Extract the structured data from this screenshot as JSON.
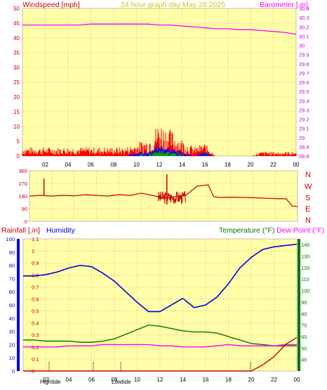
{
  "colors": {
    "plot_bg": "#ffffa8",
    "grid": "#f5a0a0",
    "wind_gust": "#ff0000",
    "wind_avg": "#0000ff",
    "wind_low": "#00a000",
    "barometer": "#ff00ff",
    "direction": "#cc0000",
    "rain": "#cc0000",
    "humidity": "#0000dd",
    "temperature": "#007700",
    "dew_point": "#ff00ff",
    "title": "#cccc00"
  },
  "header": {
    "wind_label": "Windspeed [mph]",
    "title": "24 hour graph day   May 28 2025",
    "baro_label": "Barometer [.in]"
  },
  "bottom_header": {
    "rain_label": "Rainfall [.in]",
    "humidity_label": "Humidity",
    "temp_label": "Temperature (°F)",
    "dew_label": "Dew Point (°F)"
  },
  "x_ticks": [
    "02",
    "04",
    "06",
    "08",
    "10",
    "12",
    "14",
    "16",
    "18",
    "20",
    "22",
    "00"
  ],
  "compass": [
    "N",
    "W",
    "S",
    "E",
    "N"
  ],
  "markers": {
    "high_tide": "Hightide",
    "low_tide": "Lowtide"
  },
  "chart_data": [
    {
      "type": "line",
      "title": "Windspeed [mph] / Barometer [.in]",
      "xlabel": "",
      "ylabel": "Windspeed [mph]",
      "ylabel_right": "Barometer [.in]",
      "ylim": [
        0,
        50
      ],
      "ylim_right": [
        28.8,
        30.4
      ],
      "y_ticks": [
        0,
        5,
        10,
        15,
        20,
        25,
        30,
        35,
        40,
        45,
        50
      ],
      "y_ticks_right": [
        "28.8",
        "28.9",
        "29",
        "29.1",
        "29.2",
        "29.3",
        "29.4",
        "29.5",
        "29.6",
        "29.7",
        "29.8",
        "29.9",
        "30",
        "30.1",
        "30.2",
        "30.3",
        "30.4"
      ],
      "x_hours": [
        0,
        1,
        2,
        3,
        4,
        5,
        6,
        7,
        8,
        9,
        10,
        11,
        12,
        13,
        14,
        15,
        16,
        17,
        18,
        19,
        20,
        21,
        22,
        23,
        24
      ],
      "series": [
        {
          "name": "Barometer",
          "axis": "right",
          "values": [
            30.22,
            30.22,
            30.22,
            30.22,
            30.22,
            30.22,
            30.23,
            30.23,
            30.23,
            30.23,
            30.23,
            30.23,
            30.22,
            30.22,
            30.21,
            30.2,
            30.19,
            30.18,
            30.18,
            30.17,
            30.17,
            30.16,
            30.15,
            30.14,
            30.12
          ]
        },
        {
          "name": "Wind gust",
          "axis": "left",
          "values": [
            2,
            2,
            2,
            2,
            2,
            2,
            2,
            2,
            2,
            2,
            3,
            4,
            8,
            6,
            4,
            2,
            3,
            0,
            0,
            0,
            0,
            1,
            1,
            1,
            1
          ]
        },
        {
          "name": "Wind average",
          "axis": "left",
          "values": [
            0,
            0,
            0,
            0,
            0,
            0,
            0,
            0,
            0,
            0,
            1,
            1,
            3,
            2,
            1,
            0,
            1,
            0,
            0,
            0,
            0,
            0,
            0,
            0,
            0
          ]
        }
      ]
    },
    {
      "type": "line",
      "title": "Wind direction",
      "ylim": [
        0,
        360
      ],
      "y_ticks": [
        0,
        90,
        180,
        270,
        360
      ],
      "x_hours": [
        0,
        1,
        2,
        3,
        4,
        5,
        6,
        7,
        8,
        9,
        10,
        11,
        12,
        13,
        14,
        15,
        16,
        16.5,
        17,
        18,
        19,
        20,
        21,
        22,
        23,
        23.5,
        24
      ],
      "series": [
        {
          "name": "Direction",
          "values": [
            180,
            185,
            180,
            185,
            182,
            190,
            185,
            180,
            190,
            185,
            200,
            185,
            165,
            175,
            185,
            250,
            260,
            175,
            170,
            172,
            170,
            168,
            165,
            162,
            160,
            110,
            105
          ]
        }
      ]
    },
    {
      "type": "line",
      "title": "Rainfall / Humidity / Temperature / Dew Point",
      "ylim_left": [
        0,
        100
      ],
      "ylim_rain": [
        0,
        1.1
      ],
      "ylim_right": [
        30,
        145
      ],
      "y_ticks_left": [
        0,
        10,
        20,
        30,
        40,
        50,
        60,
        70,
        80,
        90,
        100
      ],
      "y_ticks_rain": [
        "0",
        "0.1",
        "0.2",
        "0.3",
        "0.4",
        "0.5",
        "0.6",
        "0.7",
        "0.8",
        "0.9",
        "1",
        "1.1"
      ],
      "y_ticks_right": [
        40,
        50,
        60,
        70,
        80,
        90,
        100,
        110,
        120,
        130,
        140
      ],
      "x_hours": [
        0,
        1,
        2,
        3,
        4,
        5,
        6,
        7,
        8,
        9,
        10,
        11,
        12,
        13,
        14,
        15,
        16,
        17,
        18,
        19,
        20,
        21,
        22,
        23,
        24
      ],
      "series": [
        {
          "name": "Humidity",
          "axis": "left",
          "values": [
            72,
            72,
            73,
            75,
            78,
            80,
            79,
            74,
            68,
            60,
            52,
            45,
            45,
            50,
            55,
            48,
            50,
            56,
            66,
            78,
            86,
            92,
            94,
            95,
            96
          ]
        },
        {
          "name": "Temperature",
          "axis": "right",
          "values": [
            57,
            57,
            56,
            56,
            56,
            55,
            55,
            56,
            58,
            62,
            66,
            70,
            69,
            67,
            65,
            64,
            64,
            63,
            60,
            57,
            54,
            53,
            52,
            52,
            52
          ]
        },
        {
          "name": "Dew Point",
          "axis": "right",
          "values": [
            51,
            51,
            51,
            51,
            52,
            52,
            52,
            53,
            53,
            53,
            53,
            53,
            52,
            52,
            51,
            51,
            51,
            52,
            53,
            52,
            52,
            52,
            52,
            53,
            53
          ]
        },
        {
          "name": "Rainfall",
          "axis": "rain",
          "values": [
            0,
            0,
            0,
            0,
            0,
            0,
            0,
            0,
            0,
            0,
            0,
            0,
            0,
            0,
            0,
            0,
            0,
            0,
            0,
            0,
            0,
            0.05,
            0.12,
            0.22,
            0.28
          ]
        }
      ]
    }
  ]
}
